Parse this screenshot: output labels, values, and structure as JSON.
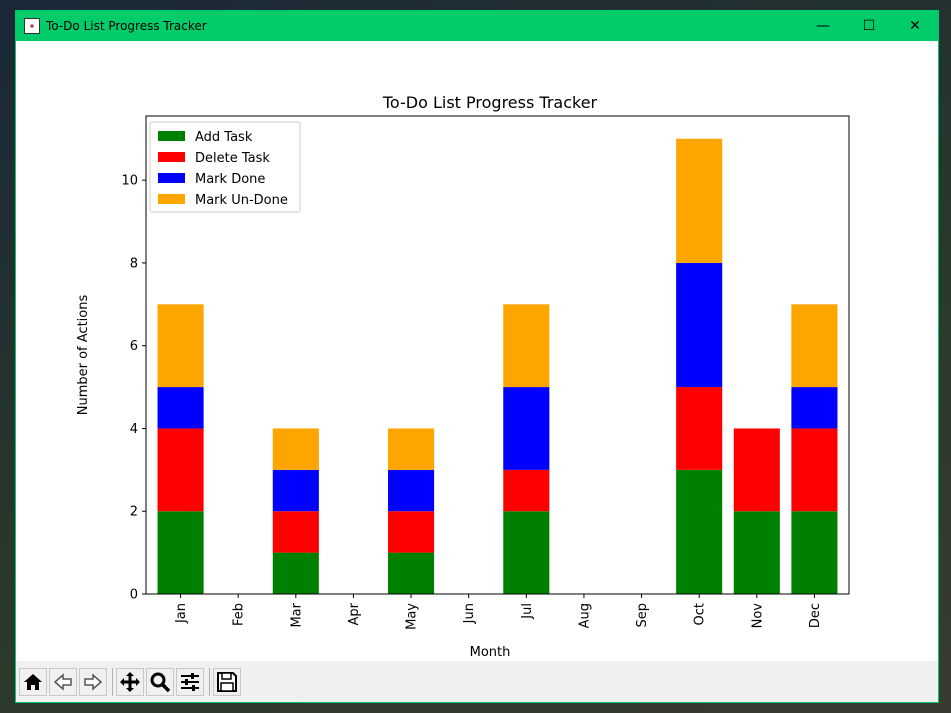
{
  "window": {
    "title": "To-Do List Progress Tracker",
    "controls": {
      "minimize": "—",
      "maximize": "☐",
      "close": "✕"
    }
  },
  "toolbar": {
    "buttons": [
      "home-icon",
      "back-icon",
      "forward-icon",
      "pan-icon",
      "zoom-icon",
      "configure-icon",
      "save-icon"
    ]
  },
  "colors": {
    "titlebar": "#00cc6a",
    "Add Task": "#008000",
    "Delete Task": "#ff0000",
    "Mark Done": "#0000ff",
    "Mark Un-Done": "#ffa500"
  },
  "chart_data": {
    "type": "bar",
    "stacked": true,
    "title": "To-Do List Progress Tracker",
    "xlabel": "Month",
    "ylabel": "Number of Actions",
    "categories": [
      "Jan",
      "Feb",
      "Mar",
      "Apr",
      "May",
      "Jun",
      "Jul",
      "Aug",
      "Sep",
      "Oct",
      "Nov",
      "Dec"
    ],
    "ylim": [
      0,
      11.55
    ],
    "yticks": [
      0,
      2,
      4,
      6,
      8,
      10
    ],
    "legend_position": "top-left",
    "grid": false,
    "series": [
      {
        "name": "Add Task",
        "color": "#008000",
        "values": [
          2,
          0,
          1,
          0,
          1,
          0,
          2,
          0,
          0,
          3,
          2,
          2
        ]
      },
      {
        "name": "Delete Task",
        "color": "#ff0000",
        "values": [
          2,
          0,
          1,
          0,
          1,
          0,
          1,
          0,
          0,
          2,
          2,
          2
        ]
      },
      {
        "name": "Mark Done",
        "color": "#0000ff",
        "values": [
          1,
          0,
          1,
          0,
          1,
          0,
          2,
          0,
          0,
          3,
          0,
          1
        ]
      },
      {
        "name": "Mark Un-Done",
        "color": "#ffa500",
        "values": [
          2,
          0,
          1,
          0,
          1,
          0,
          2,
          0,
          0,
          3,
          0,
          2
        ]
      }
    ]
  }
}
